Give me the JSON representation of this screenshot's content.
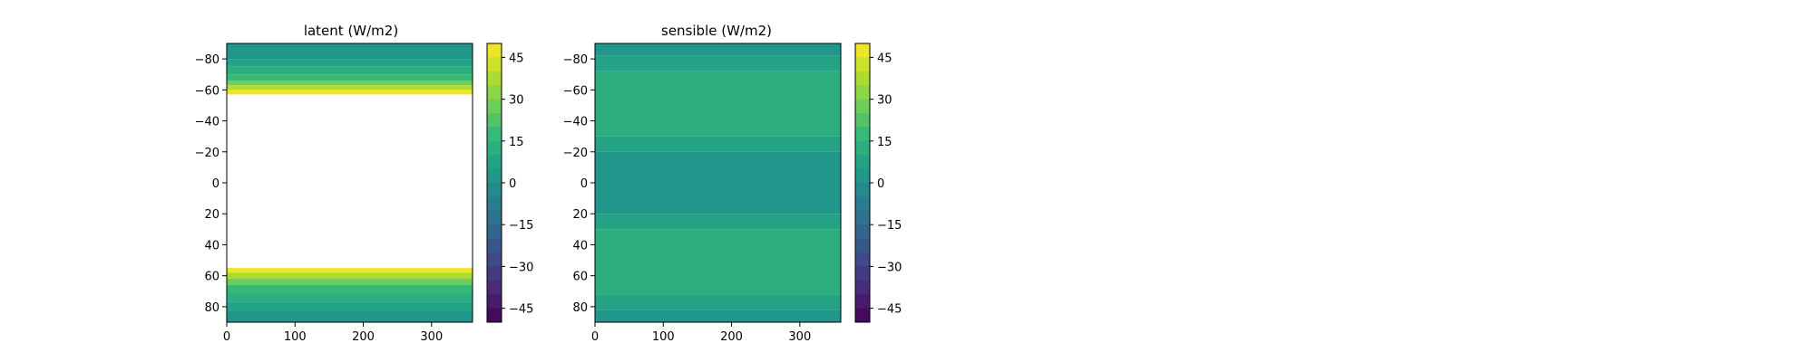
{
  "chart_data": [
    {
      "type": "heatmap",
      "title": "latent (W/m2)",
      "xlabel": "",
      "ylabel": "",
      "xlim": [
        0,
        360
      ],
      "ylim": [
        -90,
        90
      ],
      "y_inverted": true,
      "x_ticks": [
        "0",
        "100",
        "200",
        "300"
      ],
      "y_ticks": [
        "−80",
        "−60",
        "−40",
        "−20",
        "0",
        "20",
        "40",
        "60",
        "80"
      ],
      "colorbar": {
        "colormap": "viridis",
        "range": [
          -50,
          50
        ],
        "levels": 20,
        "ticks": [
          "45",
          "30",
          "15",
          "0",
          "−15",
          "−30",
          "−45"
        ]
      },
      "field": {
        "description_bands": [
          {
            "lat_from": -90,
            "lat_to": -80,
            "value": 2
          },
          {
            "lat_from": -80,
            "lat_to": -75,
            "value": 7
          },
          {
            "lat_from": -75,
            "lat_to": -70,
            "value": 12
          },
          {
            "lat_from": -70,
            "lat_to": -66,
            "value": 17
          },
          {
            "lat_from": -66,
            "lat_to": -63,
            "value": 25
          },
          {
            "lat_from": -63,
            "lat_to": -60,
            "value": 35
          },
          {
            "lat_from": -60,
            "lat_to": -57,
            "value": 45
          },
          {
            "lat_from": -57,
            "lat_to": 55,
            "value": null
          },
          {
            "lat_from": 55,
            "lat_to": 58,
            "value": 45
          },
          {
            "lat_from": 58,
            "lat_to": 62,
            "value": 35
          },
          {
            "lat_from": 62,
            "lat_to": 66,
            "value": 25
          },
          {
            "lat_from": 66,
            "lat_to": 71,
            "value": 17
          },
          {
            "lat_from": 71,
            "lat_to": 77,
            "value": 12
          },
          {
            "lat_from": 77,
            "lat_to": 83,
            "value": 7
          },
          {
            "lat_from": 83,
            "lat_to": 90,
            "value": 2
          }
        ]
      }
    },
    {
      "type": "heatmap",
      "title": "sensible (W/m2)",
      "xlabel": "",
      "ylabel": "",
      "xlim": [
        0,
        360
      ],
      "ylim": [
        -90,
        90
      ],
      "y_inverted": true,
      "x_ticks": [
        "0",
        "100",
        "200",
        "300"
      ],
      "y_ticks": [
        "−80",
        "−60",
        "−40",
        "−20",
        "0",
        "20",
        "40",
        "60",
        "80"
      ],
      "colorbar": {
        "colormap": "viridis",
        "range": [
          -50,
          50
        ],
        "levels": 20,
        "ticks": [
          "45",
          "30",
          "15",
          "0",
          "−15",
          "−30",
          "−45"
        ]
      },
      "field": {
        "description_bands": [
          {
            "lat_from": -90,
            "lat_to": -82,
            "value": 3
          },
          {
            "lat_from": -82,
            "lat_to": -72,
            "value": 8
          },
          {
            "lat_from": -72,
            "lat_to": -30,
            "value": 13
          },
          {
            "lat_from": -30,
            "lat_to": -20,
            "value": 8
          },
          {
            "lat_from": -20,
            "lat_to": 20,
            "value": 3
          },
          {
            "lat_from": 20,
            "lat_to": 30,
            "value": 8
          },
          {
            "lat_from": 30,
            "lat_to": 72,
            "value": 13
          },
          {
            "lat_from": 72,
            "lat_to": 82,
            "value": 8
          },
          {
            "lat_from": 82,
            "lat_to": 90,
            "value": 3
          }
        ]
      }
    }
  ]
}
